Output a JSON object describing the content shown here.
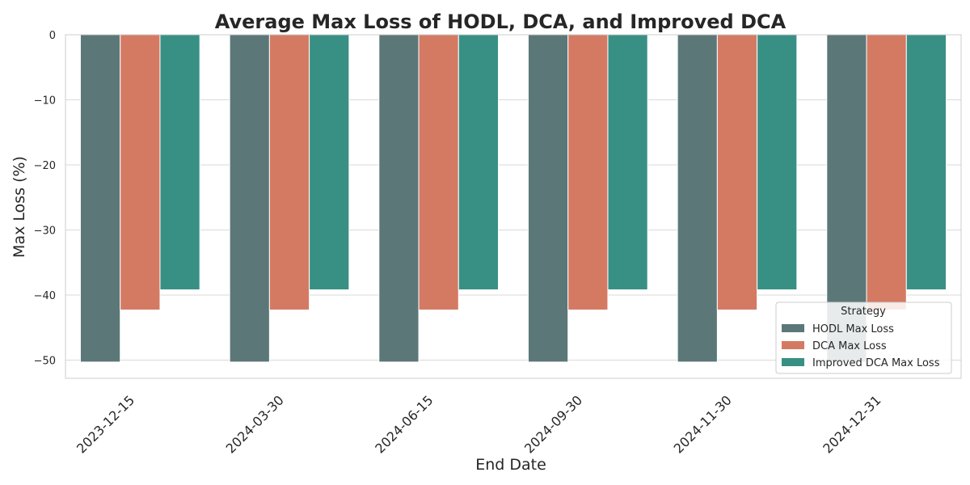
{
  "chart_data": {
    "type": "bar",
    "title": "Average Max Loss of HODL, DCA, and Improved DCA",
    "xlabel": "End Date",
    "ylabel": "Max Loss (%)",
    "categories": [
      "2023-12-15",
      "2024-03-30",
      "2024-06-15",
      "2024-09-30",
      "2024-11-30",
      "2024-12-31"
    ],
    "series": [
      {
        "name": "HODL Max Loss",
        "color": "#5c7778",
        "values": [
          -50.3,
          -50.3,
          -50.3,
          -50.3,
          -50.3,
          -50.3
        ]
      },
      {
        "name": "DCA Max Loss",
        "color": "#d47a63",
        "values": [
          -42.3,
          -42.3,
          -42.3,
          -42.3,
          -42.3,
          -42.3
        ]
      },
      {
        "name": "Improved DCA Max Loss",
        "color": "#389084",
        "values": [
          -39.2,
          -39.2,
          -39.2,
          -39.2,
          -39.2,
          -39.2
        ]
      }
    ],
    "ylim": [
      -52.8,
      0
    ],
    "yticks": [
      0,
      -10,
      -20,
      -30,
      -40,
      -50
    ],
    "grid": true,
    "legend": {
      "title": "Strategy",
      "placement": "lower-right"
    }
  }
}
